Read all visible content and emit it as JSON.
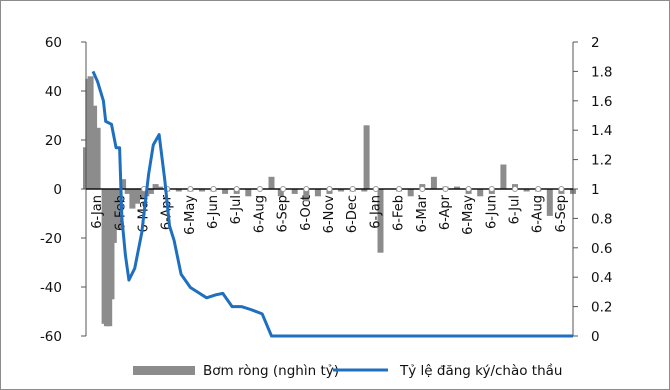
{
  "chart_data": {
    "type": "bar",
    "x_tick_labels": [
      "6-Jan",
      "6-Feb",
      "6-Mar",
      "6-Apr",
      "6-May",
      "6-Jun",
      "6-Jul",
      "6-Aug",
      "6-Sep",
      "6-Oct",
      "6-Nov",
      "6-Dec",
      "6-Jan",
      "6-Feb",
      "6-Mar",
      "6-Apr",
      "6-May",
      "6-Jun",
      "6-Jul",
      "6-Aug",
      "6-Sep"
    ],
    "ylim_left": [
      -60,
      60
    ],
    "ylim_right": [
      0,
      2
    ],
    "y_ticks_left": [
      60,
      40,
      20,
      0,
      -20,
      -40,
      -60
    ],
    "y_ticks_right": [
      2,
      1.8,
      1.6,
      1.4,
      1.2,
      1,
      0.8,
      0.6,
      0.4,
      0.2,
      0
    ],
    "series": [
      {
        "name": "Bơm ròng (nghìn tỷ)",
        "type": "bar",
        "axis": "left",
        "color": "#8c8c8c",
        "points": [
          [
            0.0,
            17
          ],
          [
            0.1,
            45
          ],
          [
            0.2,
            46
          ],
          [
            0.35,
            34
          ],
          [
            0.5,
            25
          ],
          [
            0.8,
            -55
          ],
          [
            0.9,
            -56
          ],
          [
            1.0,
            -56
          ],
          [
            1.1,
            -45
          ],
          [
            1.2,
            -22
          ],
          [
            1.4,
            -16
          ],
          [
            1.6,
            4
          ],
          [
            1.8,
            -2
          ],
          [
            2.0,
            -8
          ],
          [
            2.2,
            -6
          ],
          [
            2.4,
            -4
          ],
          [
            2.6,
            -3
          ],
          [
            2.8,
            -2
          ],
          [
            3.0,
            2
          ],
          [
            3.2,
            1
          ],
          [
            3.5,
            -1
          ],
          [
            4.0,
            -1
          ],
          [
            4.5,
            -1
          ],
          [
            5.0,
            -1
          ],
          [
            5.5,
            -1
          ],
          [
            6.0,
            -2
          ],
          [
            6.5,
            -2
          ],
          [
            7.0,
            -3
          ],
          [
            8.0,
            5
          ],
          [
            8.4,
            -3
          ],
          [
            9.0,
            -2
          ],
          [
            9.5,
            -5
          ],
          [
            10.0,
            -3
          ],
          [
            10.5,
            -2
          ],
          [
            11.0,
            -1
          ],
          [
            11.5,
            -1
          ],
          [
            12.0,
            -1
          ],
          [
            12.1,
            26
          ],
          [
            12.7,
            -26
          ],
          [
            13.5,
            -1
          ],
          [
            14.0,
            -3
          ],
          [
            14.5,
            2
          ],
          [
            15.0,
            5
          ],
          [
            15.5,
            1
          ],
          [
            16.0,
            1
          ],
          [
            16.5,
            -2
          ],
          [
            17.0,
            -3
          ],
          [
            17.5,
            -2
          ],
          [
            18.0,
            10
          ],
          [
            18.5,
            2
          ],
          [
            19.0,
            -1
          ],
          [
            19.5,
            -1
          ],
          [
            20.0,
            -11
          ],
          [
            20.5,
            -2
          ],
          [
            21.0,
            -2
          ]
        ]
      },
      {
        "name": "Tỷ lệ đăng ký/chào thầu",
        "type": "line",
        "axis": "right",
        "color": "#1f6fc0",
        "points": [
          [
            0.3,
            1.8
          ],
          [
            0.5,
            1.73
          ],
          [
            0.75,
            1.6
          ],
          [
            0.85,
            1.46
          ],
          [
            1.1,
            1.44
          ],
          [
            1.3,
            1.28
          ],
          [
            1.45,
            1.28
          ],
          [
            1.55,
            0.8
          ],
          [
            1.7,
            0.55
          ],
          [
            1.85,
            0.38
          ],
          [
            2.1,
            0.46
          ],
          [
            2.4,
            0.7
          ],
          [
            2.7,
            1.1
          ],
          [
            2.9,
            1.3
          ],
          [
            3.15,
            1.37
          ],
          [
            3.4,
            1.06
          ],
          [
            3.6,
            0.75
          ],
          [
            3.8,
            0.65
          ],
          [
            4.1,
            0.42
          ],
          [
            4.5,
            0.33
          ],
          [
            4.8,
            0.3
          ],
          [
            5.2,
            0.26
          ],
          [
            5.6,
            0.28
          ],
          [
            5.9,
            0.29
          ],
          [
            6.3,
            0.2
          ],
          [
            6.7,
            0.2
          ],
          [
            7.1,
            0.18
          ],
          [
            7.6,
            0.15
          ],
          [
            8.0,
            0.0
          ],
          [
            9.0,
            0.0
          ],
          [
            10.0,
            0.0
          ],
          [
            11.0,
            0.0
          ],
          [
            12.0,
            0.0
          ],
          [
            13.0,
            0.0
          ],
          [
            14.0,
            0.0
          ],
          [
            15.0,
            0.0
          ],
          [
            16.0,
            0.0
          ],
          [
            17.0,
            0.0
          ],
          [
            18.0,
            0.0
          ],
          [
            19.0,
            0.0
          ],
          [
            20.0,
            0.0
          ],
          [
            21.0,
            0.0
          ]
        ]
      }
    ],
    "legend": {
      "position": "bottom",
      "bar_label": "Bơm ròng (nghìn tỷ)",
      "line_label": "Tỷ lệ đăng ký/chào thầu"
    },
    "grid": false
  }
}
